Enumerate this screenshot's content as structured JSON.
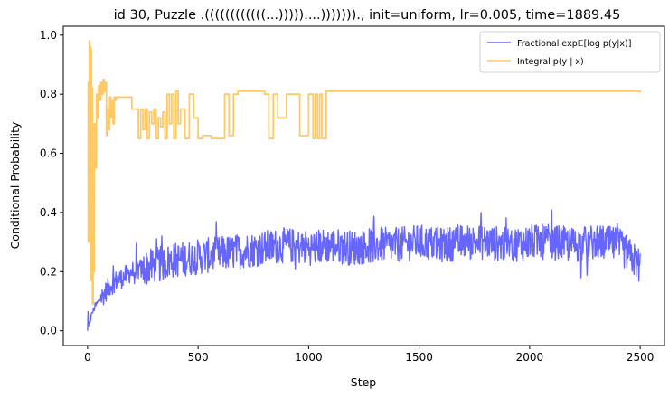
{
  "chart_data": {
    "type": "line",
    "title": "id 30, Puzzle .((((((((((((...)))))....)))))))., init=uniform, lr=0.005, time=1889.45",
    "xlabel": "Step",
    "ylabel": "Conditional Probability",
    "xlim": [
      -110,
      2610
    ],
    "ylim": [
      -0.05,
      1.03
    ],
    "xticks": [
      0,
      500,
      1000,
      1500,
      2000,
      2500
    ],
    "yticks": [
      0.0,
      0.2,
      0.4,
      0.6,
      0.8,
      1.0
    ],
    "x_tick_labels": [
      "0",
      "500",
      "1000",
      "1500",
      "2000",
      "2500"
    ],
    "y_tick_labels": [
      "0.0",
      "0.2",
      "0.4",
      "0.6",
      "0.8",
      "1.0"
    ],
    "legend_position": "top-right",
    "series": [
      {
        "name": "Fractional exp𝔼[log p(y|x)]",
        "color": "#6666ff",
        "noise": "high",
        "x": [
          0,
          10,
          20,
          40,
          60,
          80,
          100,
          130,
          160,
          200,
          250,
          300,
          350,
          400,
          500,
          600,
          700,
          800,
          900,
          1000,
          1100,
          1200,
          1300,
          1400,
          1500,
          1600,
          1700,
          1800,
          1900,
          2000,
          2100,
          2200,
          2300,
          2400,
          2500
        ],
        "values": [
          0.0,
          0.03,
          0.06,
          0.09,
          0.11,
          0.13,
          0.15,
          0.17,
          0.18,
          0.2,
          0.21,
          0.22,
          0.23,
          0.24,
          0.25,
          0.26,
          0.27,
          0.28,
          0.29,
          0.28,
          0.29,
          0.28,
          0.29,
          0.29,
          0.3,
          0.29,
          0.3,
          0.3,
          0.29,
          0.3,
          0.3,
          0.29,
          0.3,
          0.29,
          0.22
        ]
      },
      {
        "name": "Integral p(y | x)",
        "color": "#ffc966",
        "noise": "none",
        "x": [
          0,
          3,
          5,
          8,
          10,
          12,
          14,
          16,
          18,
          20,
          22,
          25,
          28,
          30,
          35,
          40,
          45,
          50,
          55,
          60,
          65,
          70,
          75,
          80,
          85,
          90,
          95,
          100,
          105,
          110,
          115,
          120,
          125,
          130,
          140,
          150,
          160,
          180,
          200,
          220,
          230,
          240,
          250,
          260,
          270,
          280,
          290,
          300,
          310,
          320,
          330,
          340,
          350,
          360,
          370,
          380,
          390,
          400,
          410,
          420,
          440,
          460,
          480,
          500,
          520,
          560,
          600,
          620,
          640,
          660,
          680,
          700,
          740,
          780,
          800,
          820,
          840,
          860,
          900,
          960,
          1000,
          1020,
          1030,
          1040,
          1050,
          1060,
          1080,
          1200,
          1400,
          1600,
          1800,
          2000,
          2200,
          2400,
          2500
        ],
        "values": [
          0.84,
          0.3,
          0.84,
          0.98,
          0.45,
          0.96,
          0.17,
          0.95,
          0.3,
          0.82,
          0.09,
          0.5,
          0.2,
          0.7,
          0.55,
          0.8,
          0.72,
          0.83,
          0.78,
          0.84,
          0.8,
          0.85,
          0.81,
          0.84,
          0.66,
          0.75,
          0.68,
          0.79,
          0.72,
          0.78,
          0.7,
          0.79,
          0.78,
          0.79,
          0.79,
          0.79,
          0.79,
          0.79,
          0.75,
          0.75,
          0.65,
          0.75,
          0.68,
          0.75,
          0.65,
          0.74,
          0.7,
          0.75,
          0.65,
          0.72,
          0.69,
          0.74,
          0.65,
          0.8,
          0.7,
          0.8,
          0.65,
          0.81,
          0.7,
          0.75,
          0.65,
          0.8,
          0.72,
          0.65,
          0.66,
          0.65,
          0.65,
          0.8,
          0.66,
          0.8,
          0.81,
          0.81,
          0.81,
          0.81,
          0.8,
          0.65,
          0.8,
          0.72,
          0.8,
          0.66,
          0.8,
          0.65,
          0.8,
          0.65,
          0.8,
          0.65,
          0.81,
          0.81,
          0.81,
          0.81,
          0.81,
          0.81,
          0.81,
          0.81,
          0.805
        ]
      }
    ]
  }
}
